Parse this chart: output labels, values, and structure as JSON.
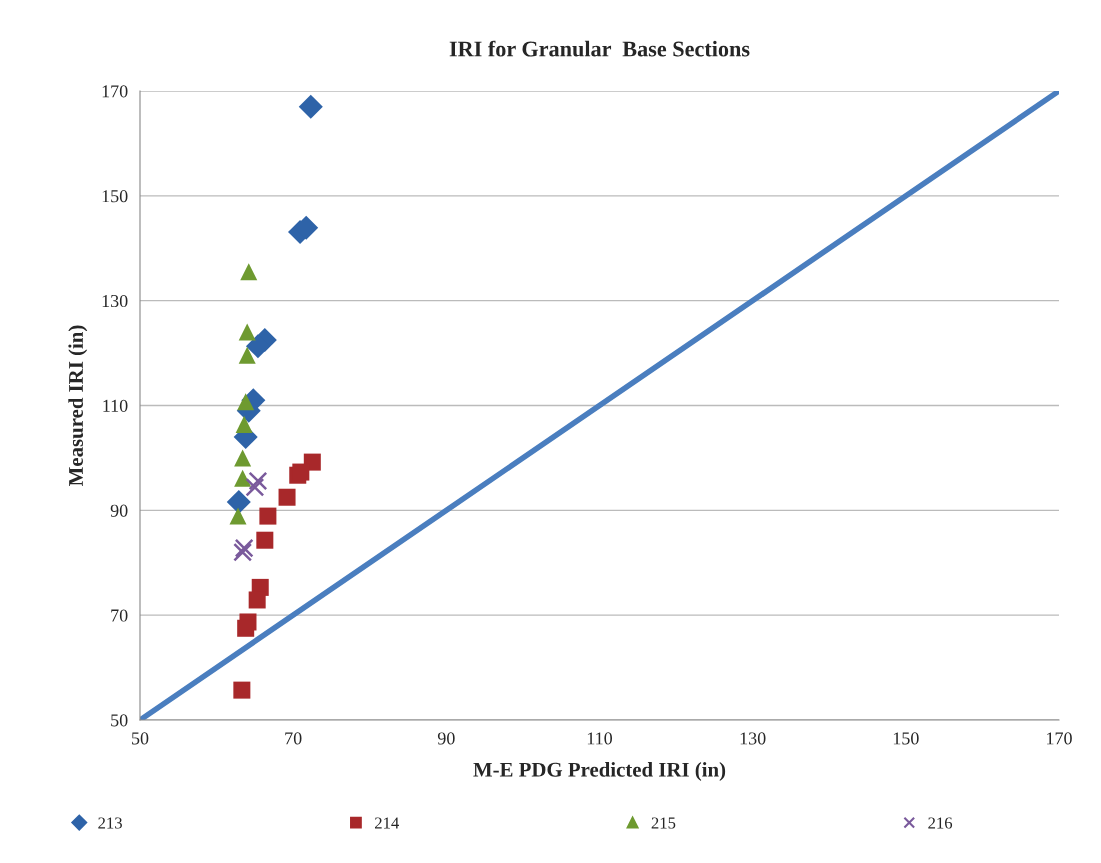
{
  "chart_data": {
    "type": "scatter",
    "title": "IRI for Granular  Base Sections",
    "xlabel": "M-E PDG Predicted IRI (in)",
    "ylabel": "Measured IRI (in)",
    "xlim": [
      50,
      170
    ],
    "ylim": [
      50,
      170
    ],
    "xticks": [
      50,
      70,
      90,
      110,
      130,
      150,
      170
    ],
    "yticks": [
      50,
      70,
      90,
      110,
      130,
      150,
      170
    ],
    "grid": "y",
    "legend": "bottom",
    "series": [
      {
        "name": "213",
        "color": "#2e63a8",
        "marker": "diamond",
        "x": [
          72.3,
          70.9,
          71.7,
          66.3,
          65.4,
          64.8,
          64.2,
          63.8,
          62.9
        ],
        "values": [
          167,
          143.1,
          143.9,
          122.5,
          121.3,
          111,
          109,
          104,
          91.6
        ]
      },
      {
        "name": "214",
        "color": "#a8282a",
        "marker": "square",
        "x": [
          72.5,
          70.6,
          71.0,
          69.2,
          66.7,
          66.3,
          65.7,
          65.3,
          64.1,
          63.8,
          63.3
        ],
        "values": [
          99.2,
          96.7,
          97.3,
          92.5,
          88.9,
          84.3,
          75.3,
          72.9,
          68.7,
          67.5,
          55.7
        ]
      },
      {
        "name": "215",
        "color": "#6e9a30",
        "marker": "triangle",
        "x": [
          64.2,
          64.0,
          64.0,
          63.8,
          63.6,
          63.4,
          63.4,
          62.8
        ],
        "values": [
          135.5,
          124,
          119.6,
          110.7,
          106.4,
          100,
          96.1,
          88.9
        ]
      },
      {
        "name": "216",
        "color": "#7a5a9c",
        "marker": "cross",
        "x": [
          65.0,
          65.4,
          63.6,
          63.4
        ],
        "values": [
          94.4,
          95.6,
          82.8,
          82
        ]
      },
      {
        "type": "line",
        "color": "#4a7ebf",
        "x": [
          50,
          170
        ],
        "values": [
          50,
          170
        ]
      }
    ]
  }
}
